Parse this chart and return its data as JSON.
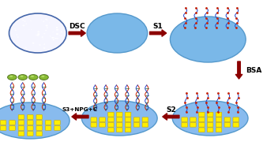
{
  "background_color": "#ffffff",
  "arrow_color": "#8B0000",
  "ellipse_white_face": "#f5f5ff",
  "ellipse_white_edge": "#4466aa",
  "ellipse_blue_face": "#7ab8e8",
  "ellipse_blue_edge": "#5599cc",
  "ellipse_platform_face": "#88bbee",
  "ellipse_platform_edge": "#5599cc",
  "yellow_dot_color": "#ffee00",
  "yellow_dot_edge": "#ccaa00",
  "green_sphere_color": "#88bb33",
  "green_sphere_edge": "#557722",
  "dna_red": "#cc2200",
  "dna_blue": "#2244cc",
  "dna_green": "#226633",
  "labels": {
    "DSC": "DSC",
    "S1": "S1",
    "BSA": "BSA",
    "S2": "S2",
    "S3NPG": "S3+NPG+C"
  },
  "label_fontsize": 6.5,
  "label_fontweight": "bold",
  "label_color": "#000000"
}
